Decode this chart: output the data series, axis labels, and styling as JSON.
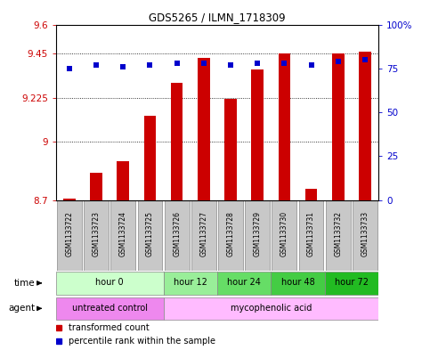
{
  "title": "GDS5265 / ILMN_1718309",
  "samples": [
    "GSM1133722",
    "GSM1133723",
    "GSM1133724",
    "GSM1133725",
    "GSM1133726",
    "GSM1133727",
    "GSM1133728",
    "GSM1133729",
    "GSM1133730",
    "GSM1133731",
    "GSM1133732",
    "GSM1133733"
  ],
  "bar_values": [
    8.71,
    8.84,
    8.9,
    9.13,
    9.3,
    9.43,
    9.22,
    9.37,
    9.45,
    8.76,
    9.45,
    9.46
  ],
  "dot_values": [
    75,
    77,
    76,
    77,
    78,
    78,
    77,
    78,
    78,
    77,
    79,
    80
  ],
  "bar_color": "#cc0000",
  "dot_color": "#0000cc",
  "ylim_left": [
    8.7,
    9.6
  ],
  "ylim_right": [
    0,
    100
  ],
  "yticks_left": [
    8.7,
    9.0,
    9.225,
    9.45,
    9.6
  ],
  "ytick_labels_left": [
    "8.7",
    "9",
    "9.225",
    "9.45",
    "9.6"
  ],
  "yticks_right": [
    0,
    25,
    50,
    75,
    100
  ],
  "ytick_labels_right": [
    "0",
    "25",
    "50",
    "75",
    "100%"
  ],
  "hlines": [
    9.0,
    9.225,
    9.45
  ],
  "time_groups": [
    {
      "label": "hour 0",
      "start": 0,
      "end": 4,
      "color": "#ccffcc"
    },
    {
      "label": "hour 12",
      "start": 4,
      "end": 6,
      "color": "#99ee99"
    },
    {
      "label": "hour 24",
      "start": 6,
      "end": 8,
      "color": "#66dd66"
    },
    {
      "label": "hour 48",
      "start": 8,
      "end": 10,
      "color": "#44cc44"
    },
    {
      "label": "hour 72",
      "start": 10,
      "end": 12,
      "color": "#22bb22"
    }
  ],
  "agent_groups": [
    {
      "label": "untreated control",
      "start": 0,
      "end": 4,
      "color": "#ee88ee"
    },
    {
      "label": "mycophenolic acid",
      "start": 4,
      "end": 12,
      "color": "#ffbbff"
    }
  ],
  "legend_items": [
    {
      "label": "transformed count",
      "color": "#cc0000"
    },
    {
      "label": "percentile rank within the sample",
      "color": "#0000cc"
    }
  ],
  "time_label": "time",
  "agent_label": "agent",
  "sample_box_color": "#c8c8c8",
  "sample_box_edge": "#888888"
}
